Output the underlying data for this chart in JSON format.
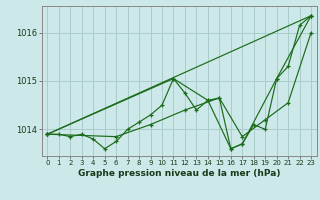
{
  "title": "",
  "xlabel": "Graphe pression niveau de la mer (hPa)",
  "background_color": "#cce8e8",
  "grid_color": "#aacccc",
  "line_color": "#1a6b1a",
  "xlim": [
    -0.5,
    23.5
  ],
  "ylim": [
    1013.45,
    1016.55
  ],
  "yticks": [
    1014,
    1015,
    1016
  ],
  "xticks": [
    0,
    1,
    2,
    3,
    4,
    5,
    6,
    7,
    8,
    9,
    10,
    11,
    12,
    13,
    14,
    15,
    16,
    17,
    18,
    19,
    20,
    21,
    22,
    23
  ],
  "series": [
    {
      "x": [
        0,
        1,
        2,
        3,
        4,
        5,
        6,
        7,
        8,
        9,
        10,
        11,
        12,
        13,
        14,
        15,
        16,
        17,
        18,
        19,
        20,
        21,
        22,
        23
      ],
      "y": [
        1013.9,
        1013.9,
        1013.85,
        1013.9,
        1013.8,
        1013.6,
        1013.75,
        1014.0,
        1014.15,
        1014.3,
        1014.5,
        1015.05,
        1014.75,
        1014.4,
        1014.6,
        1014.65,
        1013.6,
        1013.7,
        1014.1,
        1014.0,
        1015.05,
        1015.3,
        1016.15,
        1016.35
      ]
    },
    {
      "x": [
        0,
        23
      ],
      "y": [
        1013.9,
        1016.35
      ]
    },
    {
      "x": [
        0,
        11,
        14,
        16,
        17,
        20,
        23
      ],
      "y": [
        1013.9,
        1015.05,
        1014.6,
        1013.6,
        1013.7,
        1015.05,
        1016.35
      ]
    },
    {
      "x": [
        0,
        6,
        9,
        12,
        15,
        17,
        19,
        21,
        23
      ],
      "y": [
        1013.9,
        1013.85,
        1014.1,
        1014.4,
        1014.65,
        1013.85,
        1014.2,
        1014.55,
        1016.0
      ]
    }
  ]
}
